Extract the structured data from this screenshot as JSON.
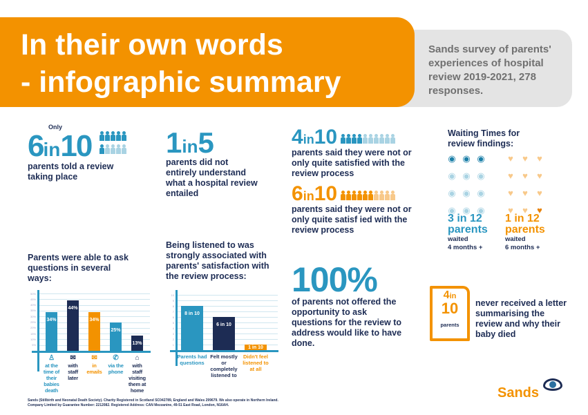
{
  "header": {
    "title_line1": "In their own words",
    "title_line2": "- infographic summary",
    "subtitle": "Sands survey of parents' experiences of hospital review 2019-2021, 278 responses."
  },
  "colors": {
    "orange": "#f39200",
    "blue": "#2a96c0",
    "navy": "#1d2c54",
    "light_blue": "#a9d3e3",
    "grey": "#e4e4e4"
  },
  "stat1": {
    "only": "Only",
    "num": "6",
    "in": "in",
    "den": "10",
    "text": "parents told a review taking place",
    "filled": 6,
    "total": 10
  },
  "stat2": {
    "num": "1",
    "in": "in",
    "den": "5",
    "text": "parents did not entirely understand what a hospital review entailed"
  },
  "stat3": {
    "num": "4",
    "in": "in",
    "den": "10",
    "text": "parents said they were not or only quite satisfied with the review process",
    "filled": 4,
    "total": 10
  },
  "stat4": {
    "num": "6",
    "in": "in",
    "den": "10",
    "text": "parents said they were not or only quite satisf ied with the review process",
    "filled": 6,
    "total": 10
  },
  "waiting": {
    "title": "Waiting Times for review findings:",
    "left": {
      "stat": "3 in 12",
      "parents": "parents",
      "waited": "waited",
      "duration": "4 months +",
      "highlighted": 3,
      "total": 12,
      "icon": "crying-eye-icon"
    },
    "right": {
      "stat": "1 in 12",
      "parents": "parents",
      "waited": "waited",
      "duration": "6 months +",
      "highlighted": 1,
      "total": 12,
      "icon": "broken-heart-icon"
    }
  },
  "chart_data": [
    {
      "type": "bar",
      "title": "Parents were able to ask questions in several ways:",
      "ylim": [
        0,
        50
      ],
      "yticks": [
        "5%",
        "10%",
        "15%",
        "20%",
        "25%",
        "30%",
        "35%",
        "40%",
        "45%",
        "50%"
      ],
      "categories": [
        "at the time of their babies death",
        "with staff later",
        "in emails",
        "via the phone",
        "with staff visiting them at home"
      ],
      "icons": [
        "baby-icon",
        "chat-icon",
        "email-icon",
        "phone-icon",
        "home-icon"
      ],
      "values": [
        34,
        44,
        34,
        25,
        13
      ],
      "labels": [
        "34%",
        "44%",
        "34%",
        "25%",
        "13%"
      ],
      "bar_colors": [
        "#2a96c0",
        "#1d2c54",
        "#f39200",
        "#2a96c0",
        "#1d2c54"
      ]
    },
    {
      "type": "bar",
      "title": "Being listened to was strongly associated with parents' satisfaction with the review process:",
      "ylim": [
        0,
        10
      ],
      "yticks": [
        "1",
        "2",
        "3",
        "4",
        "5",
        "6",
        "7",
        "8",
        "9",
        "10"
      ],
      "categories": [
        "Parents had questions",
        "Felt mostly or completely listened to",
        "Didn't feel listened to at all"
      ],
      "values": [
        8,
        6,
        1
      ],
      "labels": [
        "8 in 10",
        "6 in 10",
        "1 in 10"
      ],
      "bar_colors": [
        "#2a96c0",
        "#1d2c54",
        "#f39200"
      ]
    }
  ],
  "stat5": {
    "num": "100%",
    "text": "of parents not offered the opportunity to ask questions for the review to address would like to have done."
  },
  "stat6": {
    "num": "4",
    "in": "in",
    "den": "10",
    "parents": "parents",
    "text": "never received a letter summarising the review and why their baby died"
  },
  "footer": {
    "line1": "Sands (Stillbirth and Neonatal Death Society). Charity Registered in Scotland SC042789, England and Wales 299679. We also operate in Northern Ireland.",
    "line2": "Company Limited by Guarantee Number: 2212082. Registered Address: CAN Mezzanine, 49-51 East Road, London, N16AH.",
    "logo": "Sands"
  }
}
